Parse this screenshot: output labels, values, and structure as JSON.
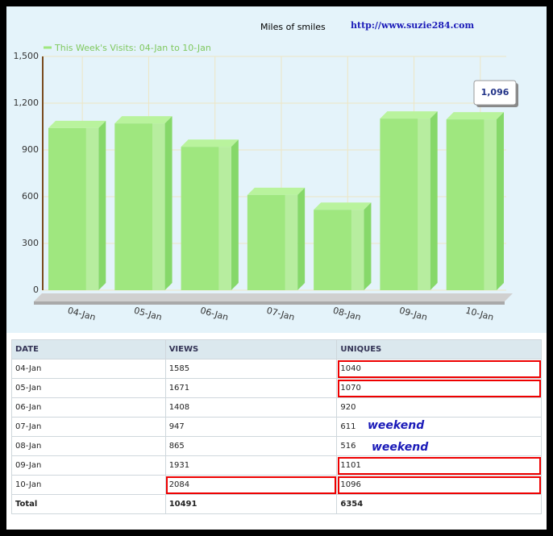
{
  "chart_data": {
    "type": "bar3d",
    "subtitle": "Miles of smiles",
    "site_url": "http://www.suzie284.com",
    "categories": [
      "04-Jan",
      "05-Jan",
      "06-Jan",
      "07-Jan",
      "08-Jan",
      "09-Jan",
      "10-Jan"
    ],
    "series": [
      {
        "name": "This Week's Visits: 04-Jan to 10-Jan",
        "color": "#9fe77f",
        "values": [
          1040,
          1070,
          920,
          611,
          516,
          1101,
          1096
        ]
      }
    ],
    "value_labels": [
      null,
      null,
      null,
      null,
      null,
      null,
      "1,096"
    ],
    "ylim": [
      0,
      1500
    ],
    "yticks": [
      0,
      300,
      600,
      900,
      {
        "value": 1200,
        "label": "1,200"
      },
      {
        "value": 1500,
        "label": "1,500"
      }
    ],
    "grid": true
  },
  "table": {
    "header": [
      "DATE",
      "VIEWS",
      "UNIQUES"
    ],
    "rows": [
      [
        "04-Jan",
        "1585",
        "1040"
      ],
      [
        "05-Jan",
        "1671",
        "1070"
      ],
      [
        "06-Jan",
        "1408",
        "920"
      ],
      [
        "07-Jan",
        "947",
        "611"
      ],
      [
        "08-Jan",
        "865",
        "516"
      ],
      [
        "09-Jan",
        "1931",
        "1101"
      ],
      [
        "10-Jan",
        "2084",
        "1096"
      ]
    ],
    "total": [
      "Total",
      "10491",
      "6354"
    ]
  },
  "annotations": [
    "weekend",
    "weekend"
  ]
}
